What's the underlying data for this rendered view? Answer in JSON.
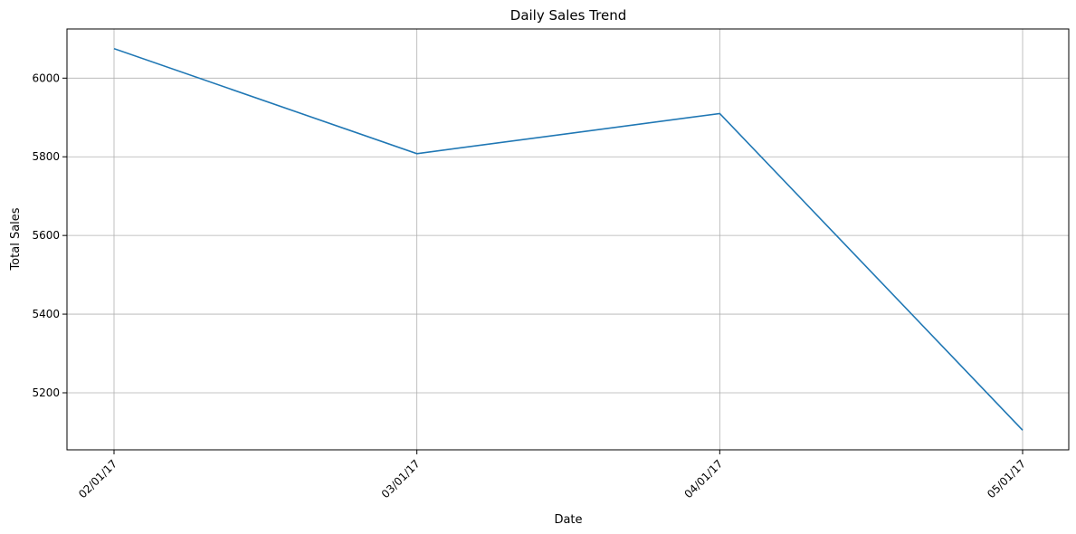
{
  "chart_data": {
    "type": "line",
    "title": "Daily Sales Trend",
    "xlabel": "Date",
    "ylabel": "Total Sales",
    "categories": [
      "02/01/17",
      "03/01/17",
      "04/01/17",
      "05/01/17"
    ],
    "series": [
      {
        "values": [
          6075,
          5808,
          5910,
          5105
        ],
        "color": "#1f77b4"
      }
    ],
    "ylim": [
      5055,
      6125
    ],
    "yticks": [
      5200,
      5400,
      5600,
      5800,
      6000
    ],
    "grid": true
  }
}
